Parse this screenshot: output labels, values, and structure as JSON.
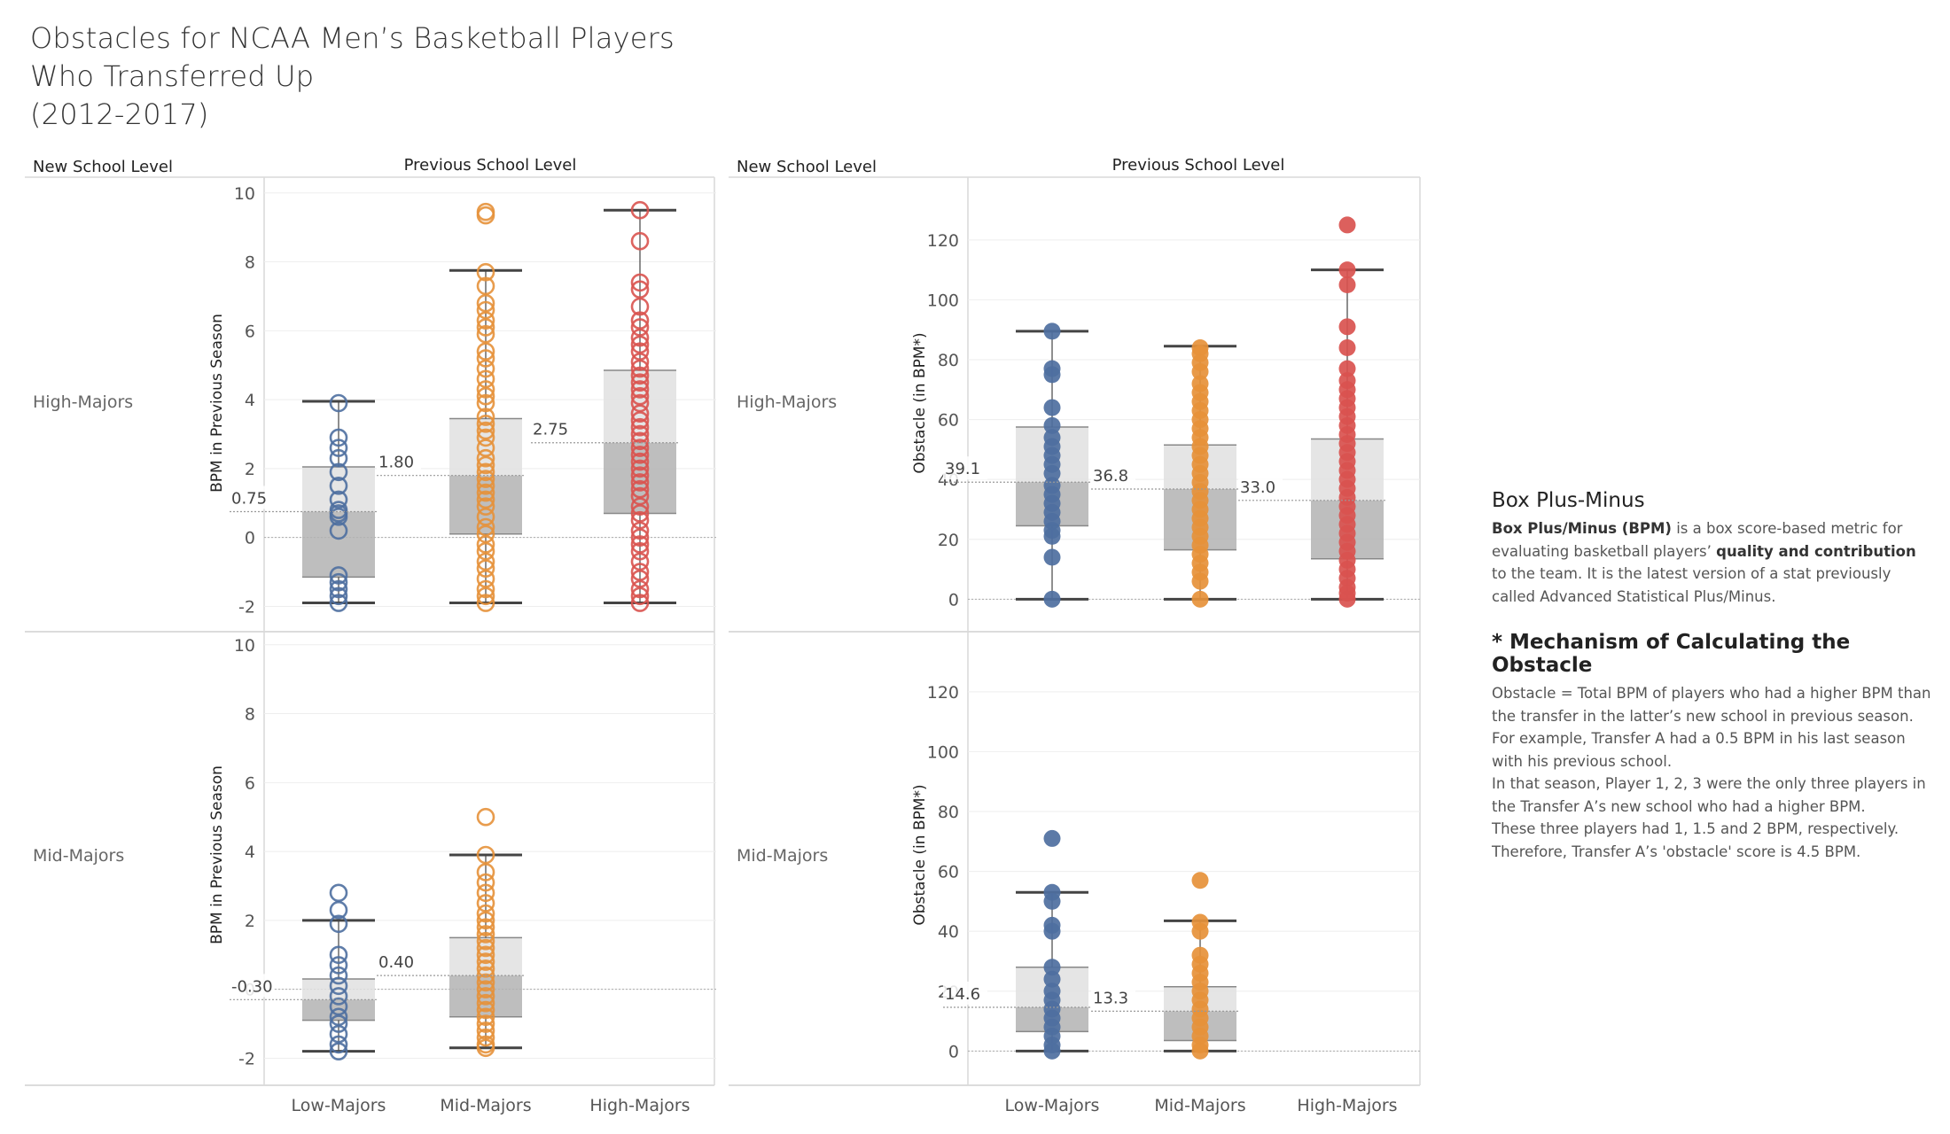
{
  "title": {
    "lines": [
      "Obstacles for NCAA Men’s Basketball Players",
      "Who Transferred Up",
      "(2012-2017)"
    ]
  },
  "headers": {
    "row_field": "New School Level",
    "col_field": "Previous School Level"
  },
  "categories": [
    "Low-Majors",
    "Mid-Majors",
    "High-Majors"
  ],
  "rows": [
    "High-Majors",
    "Mid-Majors"
  ],
  "colors": {
    "Low-Majors": "#4e6fa0",
    "Mid-Majors": "#e6913a",
    "High-Majors": "#d9534f",
    "box_upper": "#e0e0e0",
    "box_lower": "#b3b3b3",
    "whisker": "#444444"
  },
  "chart_data": [
    {
      "type": "box-scatter",
      "ylabel": "BPM in Previous Season",
      "ylim": [
        -2.4,
        10.2
      ],
      "yticks": [
        -2,
        0,
        2,
        4,
        6,
        8,
        10
      ],
      "marker": "hollow-circle",
      "panels": [
        {
          "row": "High-Majors",
          "boxes": [
            {
              "category": "Low-Majors",
              "median": 0.75,
              "median_label": "0.75",
              "q1": -1.15,
              "q3": 2.05,
              "whisker_low": -1.9,
              "whisker_high": 3.95,
              "points": [
                3.9,
                2.9,
                2.6,
                2.3,
                1.9,
                1.5,
                1.1,
                0.8,
                0.7,
                0.6,
                0.2,
                -1.1,
                -1.3,
                -1.5,
                -1.7,
                -1.9
              ]
            },
            {
              "category": "Mid-Majors",
              "median": 1.8,
              "median_label": "1.80",
              "q1": 0.1,
              "q3": 3.45,
              "whisker_low": -1.9,
              "whisker_high": 7.75,
              "points": [
                9.45,
                9.35,
                7.7,
                7.3,
                6.8,
                6.6,
                6.3,
                6.1,
                5.9,
                5.4,
                5.2,
                4.9,
                4.6,
                4.3,
                4.1,
                3.9,
                3.5,
                3.3,
                3.1,
                2.9,
                2.6,
                2.3,
                2.1,
                1.9,
                1.7,
                1.5,
                1.3,
                1.1,
                0.9,
                0.6,
                0.3,
                0.1,
                -0.2,
                -0.4,
                -0.7,
                -0.9,
                -1.2,
                -1.5,
                -1.7,
                -1.9
              ]
            },
            {
              "category": "High-Majors",
              "median": 2.75,
              "median_label": "2.75",
              "q1": 0.7,
              "q3": 4.85,
              "whisker_low": -1.9,
              "whisker_high": 9.5,
              "points": [
                9.5,
                8.6,
                7.4,
                7.2,
                6.7,
                6.3,
                6.1,
                5.8,
                5.6,
                5.4,
                5.1,
                4.9,
                4.7,
                4.5,
                4.3,
                4.1,
                3.9,
                3.6,
                3.4,
                3.2,
                3.0,
                2.8,
                2.6,
                2.4,
                2.2,
                2.0,
                1.8,
                1.6,
                1.4,
                1.2,
                0.9,
                0.7,
                0.5,
                0.2,
                0.0,
                -0.2,
                -0.4,
                -0.7,
                -1.0,
                -1.2,
                -1.5,
                -1.7,
                -1.9
              ]
            }
          ]
        },
        {
          "row": "Mid-Majors",
          "boxes": [
            {
              "category": "Low-Majors",
              "median": -0.3,
              "median_label": "-0.30",
              "q1": -0.9,
              "q3": 0.3,
              "whisker_low": -1.8,
              "whisker_high": 2.0,
              "points": [
                2.8,
                2.3,
                1.9,
                1.0,
                0.7,
                0.4,
                0.1,
                -0.2,
                -0.5,
                -0.8,
                -1.0,
                -1.3,
                -1.6,
                -1.8
              ]
            },
            {
              "category": "Mid-Majors",
              "median": 0.4,
              "median_label": "0.40",
              "q1": -0.8,
              "q3": 1.5,
              "whisker_low": -1.7,
              "whisker_high": 3.9,
              "points": [
                5.0,
                3.9,
                3.4,
                3.1,
                2.8,
                2.5,
                2.2,
                2.0,
                1.8,
                1.6,
                1.4,
                1.2,
                1.0,
                0.8,
                0.6,
                0.4,
                0.2,
                0.0,
                -0.2,
                -0.4,
                -0.6,
                -0.8,
                -1.0,
                -1.2,
                -1.4,
                -1.6,
                -1.7
              ]
            }
          ]
        }
      ]
    },
    {
      "type": "box-scatter",
      "ylabel": "Obstacle (in BPM*)",
      "ylim": [
        -7,
        138
      ],
      "yticks": [
        0,
        20,
        40,
        60,
        80,
        100,
        120
      ],
      "marker": "filled-circle",
      "panels": [
        {
          "row": "High-Majors",
          "boxes": [
            {
              "category": "Low-Majors",
              "median": 39.1,
              "median_label": "39.1",
              "q1": 24.5,
              "q3": 57.5,
              "whisker_low": 0,
              "whisker_high": 89.5,
              "points": [
                89.5,
                77,
                75,
                64,
                58,
                54,
                51,
                48,
                45,
                42,
                38,
                35,
                32,
                29,
                26,
                23,
                21,
                14,
                0
              ]
            },
            {
              "category": "Mid-Majors",
              "median": 36.8,
              "median_label": "36.8",
              "q1": 16.5,
              "q3": 51.5,
              "whisker_low": 0,
              "whisker_high": 84.5,
              "points": [
                84,
                82,
                79,
                76,
                72,
                69,
                66,
                63,
                60,
                57,
                54,
                51,
                48,
                45,
                42,
                39,
                36,
                33,
                30,
                27,
                24,
                21,
                18,
                15,
                12,
                9,
                6,
                0
              ]
            },
            {
              "category": "High-Majors",
              "median": 33.0,
              "median_label": "33.0",
              "q1": 13.5,
              "q3": 53.5,
              "whisker_low": 0,
              "whisker_high": 110,
              "points": [
                125,
                110,
                105,
                91,
                84,
                77,
                73,
                70,
                67,
                64,
                61,
                58,
                55,
                52,
                49,
                46,
                43,
                40,
                37,
                34,
                31,
                28,
                25,
                22,
                19,
                16,
                13,
                10,
                7,
                4,
                2,
                0
              ]
            }
          ]
        },
        {
          "row": "Mid-Majors",
          "boxes": [
            {
              "category": "Low-Majors",
              "median": 14.6,
              "median_label": "14.6",
              "q1": 6.5,
              "q3": 28.0,
              "whisker_low": 0,
              "whisker_high": 53.0,
              "points": [
                71,
                53,
                50,
                42,
                40,
                28,
                24,
                20,
                17,
                14,
                11,
                8,
                5,
                2,
                0
              ]
            },
            {
              "category": "Mid-Majors",
              "median": 13.3,
              "median_label": "13.3",
              "q1": 3.5,
              "q3": 21.5,
              "whisker_low": 0,
              "whisker_high": 43.5,
              "points": [
                57,
                43,
                40,
                32,
                29,
                26,
                23,
                20,
                17,
                14,
                11,
                8,
                5,
                2,
                0
              ]
            }
          ]
        }
      ]
    }
  ],
  "notes": {
    "bpm_heading": "Box Plus-Minus",
    "bpm_term": "Box Plus/Minus (BPM)",
    "bpm_text1": " is a box score-based metric for evaluating basketball players’ ",
    "bpm_strong": "quality and contribution",
    "bpm_text2": " to the team. It is the latest version of a stat previously called Advanced Statistical Plus/Minus.",
    "obstacle_heading": "* Mechanism of Calculating the Obstacle",
    "obstacle_lines": [
      "Obstacle = Total BPM of players who had a higher BPM than the transfer in the latter’s new school in previous season.",
      "For example, Transfer A had a 0.5 BPM in his last season with his previous school.",
      "In that season, Player 1, 2, 3 were the only three players in the Transfer A’s new school who had a higher BPM.",
      "These three players had 1, 1.5 and 2 BPM, respectively.",
      "Therefore, Transfer A’s 'obstacle' score is 4.5 BPM."
    ]
  }
}
